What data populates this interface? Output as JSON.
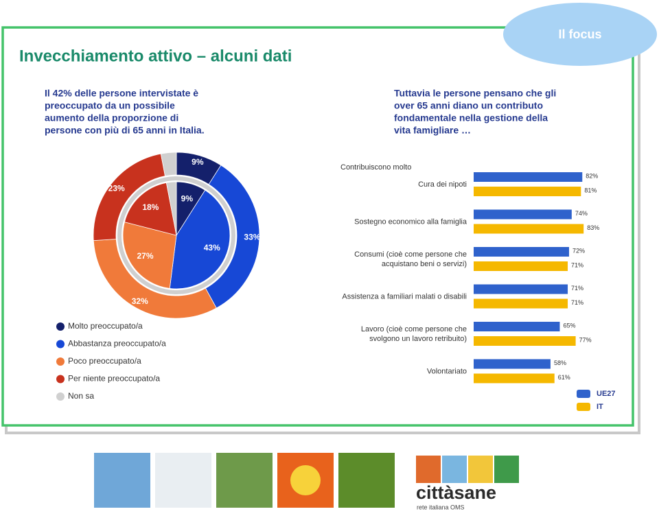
{
  "header": {
    "title": "Invecchiamento attivo – alcuni dati",
    "focus": "Il focus"
  },
  "left_text": [
    "Il 42% delle persone intervistate è",
    "preoccupato da un possibile",
    "aumento della proporzione di",
    "persone con più di 65 anni in Italia."
  ],
  "right_text": [
    "Tuttavia le persone pensano che gli",
    "over 65 anni diano un contributo",
    "fondamentale nella gestione della",
    "vita famigliare …"
  ],
  "chart_data": [
    {
      "type": "pie",
      "categories": [
        "Molto preoccupato/a",
        "Abbastanza preoccupato/a",
        "Poco preoccupato/a",
        "Per niente preoccupato/a",
        "Non sa"
      ],
      "colors": [
        "#14206b",
        "#1748d6",
        "#f07a3a",
        "#c8321e",
        "#d0d0d0"
      ],
      "series": [
        {
          "values": [
            9,
            33,
            32,
            23,
            3
          ],
          "value_labels": [
            "9%",
            "33%",
            "32%",
            "23%",
            null
          ]
        },
        {
          "values": [
            9,
            43,
            27,
            18,
            3
          ],
          "value_labels": [
            "9%",
            "43%",
            "27%",
            "18%",
            null
          ]
        }
      ]
    },
    {
      "type": "bar",
      "orientation": "horizontal",
      "heading": "Contribuiscono molto",
      "categories": [
        "Cura dei nipoti",
        "Sostegno economico alla famiglia",
        "Consumi (cioè come persone che\nacquistano beni o servizi)",
        "Assistenza a familiari malati o disabili",
        "Lavoro (cioè come persone che\nsvolgono un lavoro retribuito)",
        "Volontariato"
      ],
      "series": [
        {
          "name": "UE27",
          "color": "#2f62cc",
          "values": [
            82,
            74,
            72,
            71,
            65,
            58
          ],
          "value_labels": [
            "82%",
            "74%",
            "72%",
            "71%",
            "65%",
            "58%"
          ]
        },
        {
          "name": "IT",
          "color": "#f5b800",
          "values": [
            81,
            83,
            71,
            71,
            77,
            61
          ],
          "value_labels": [
            "81%",
            "83%",
            "71%",
            "71%",
            "77%",
            "61%"
          ]
        }
      ],
      "xlim": [
        0,
        100
      ]
    }
  ],
  "logo": {
    "name": "cittàsane",
    "subtitle": "rete italiana OMS"
  }
}
